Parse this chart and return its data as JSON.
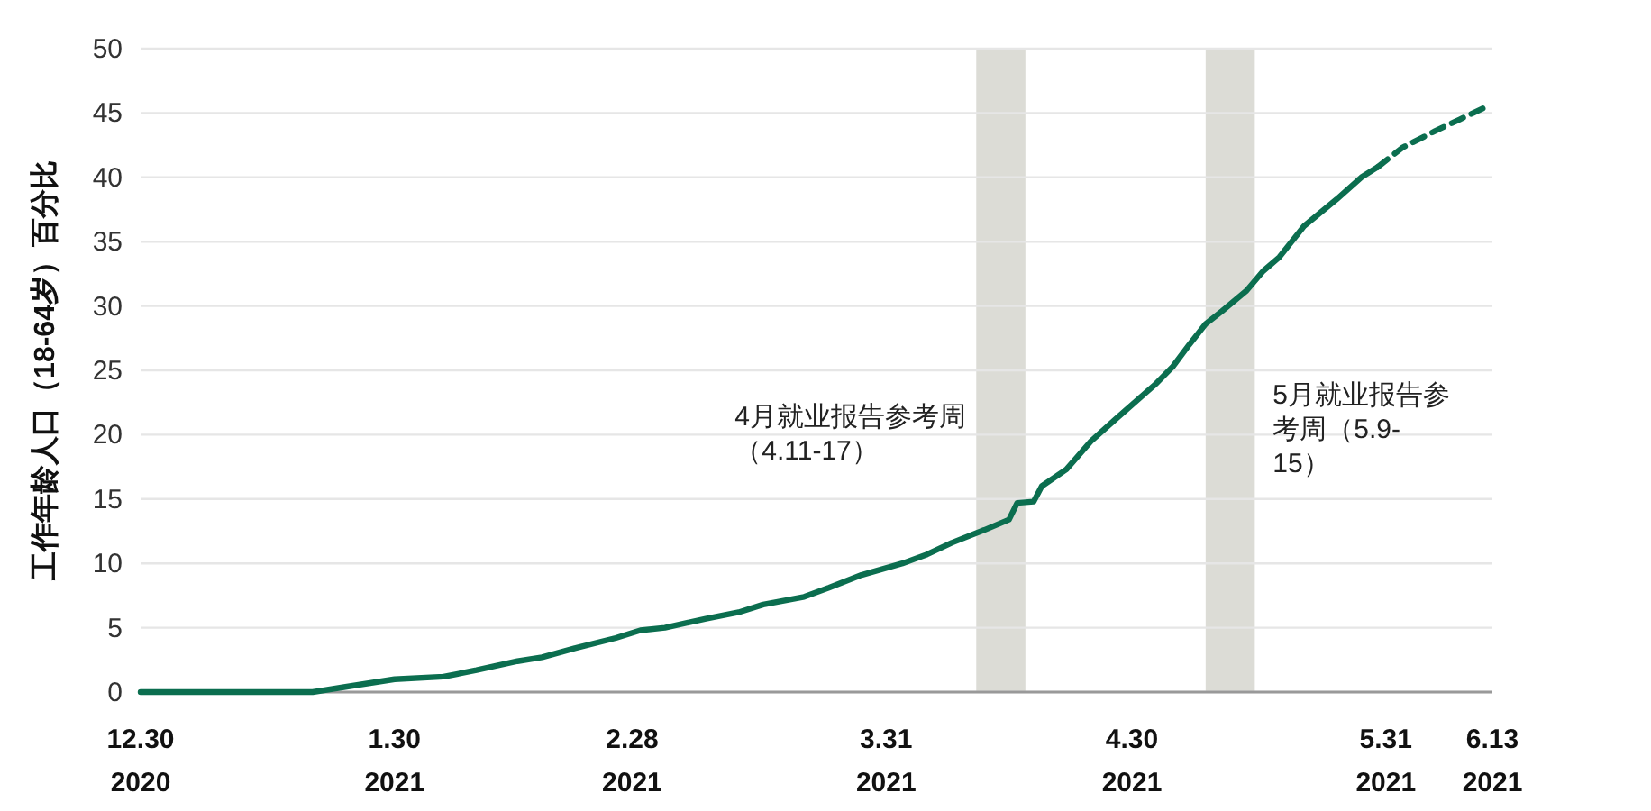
{
  "chart_data": {
    "type": "line",
    "ylabel": "工作年龄人口（18-64岁）百分比",
    "xlim": [
      "2020-12-30",
      "2021-06-13"
    ],
    "ylim": [
      0,
      50
    ],
    "xticks": [
      {
        "value": "2020-12-30",
        "label": "12.30\n2020"
      },
      {
        "value": "2021-01-30",
        "label": "1.30\n2021"
      },
      {
        "value": "2021-02-28",
        "label": "2.28\n2021"
      },
      {
        "value": "2021-03-31",
        "label": "3.31\n2021"
      },
      {
        "value": "2021-04-30",
        "label": "4.30\n2021"
      },
      {
        "value": "2021-05-31",
        "label": "5.31\n2021"
      },
      {
        "value": "2021-06-13",
        "label": "6.13\n2021"
      }
    ],
    "yticks": [
      0,
      5,
      10,
      15,
      20,
      25,
      30,
      35,
      40,
      45,
      50
    ],
    "grid": "y",
    "series": [
      {
        "color": "#0b6e4f",
        "line_style": "solid",
        "x": [
          "2020-12-30",
          "2021-01-20",
          "2021-01-24",
          "2021-01-27",
          "2021-01-30",
          "2021-02-05",
          "2021-02-09",
          "2021-02-14",
          "2021-02-17",
          "2021-02-21",
          "2021-02-26",
          "2021-03-01",
          "2021-03-04",
          "2021-03-09",
          "2021-03-13",
          "2021-03-16",
          "2021-03-21",
          "2021-03-24",
          "2021-03-28",
          "2021-04-02",
          "2021-04-05",
          "2021-04-08",
          "2021-04-12",
          "2021-04-15",
          "2021-04-16",
          "2021-04-18",
          "2021-04-19",
          "2021-04-22",
          "2021-04-25",
          "2021-04-28",
          "2021-05-03",
          "2021-05-05",
          "2021-05-07",
          "2021-05-09",
          "2021-05-11",
          "2021-05-14",
          "2021-05-16",
          "2021-05-18",
          "2021-05-21",
          "2021-05-25",
          "2021-05-28",
          "2021-05-30"
        ],
        "values": [
          0,
          0,
          0.4,
          0.7,
          1.0,
          1.2,
          1.7,
          2.4,
          2.7,
          3.4,
          4.2,
          4.8,
          5.0,
          5.7,
          6.2,
          6.8,
          7.4,
          8.1,
          9.1,
          10.0,
          10.7,
          11.6,
          12.6,
          13.4,
          14.7,
          14.8,
          16.0,
          17.3,
          19.5,
          21.2,
          24.0,
          25.3,
          27.0,
          28.6,
          29.6,
          31.2,
          32.7,
          33.8,
          36.2,
          38.3,
          40.0,
          40.8
        ]
      },
      {
        "color": "#0b6e4f",
        "line_style": "dashed",
        "x": [
          "2021-05-30",
          "2021-06-02",
          "2021-06-06",
          "2021-06-09",
          "2021-06-12"
        ],
        "values": [
          40.8,
          42.3,
          43.6,
          44.5,
          45.4
        ]
      }
    ],
    "bands": [
      {
        "axis": "x",
        "from": "2021-04-11",
        "to": "2021-04-17",
        "color": "#dcdcd6",
        "label": "4月就业报告参考周（4.11-17）"
      },
      {
        "axis": "x",
        "from": "2021-05-09",
        "to": "2021-05-15",
        "color": "#dcdcd6",
        "label": "5月就业报告参考周（5.9-15）"
      }
    ]
  }
}
